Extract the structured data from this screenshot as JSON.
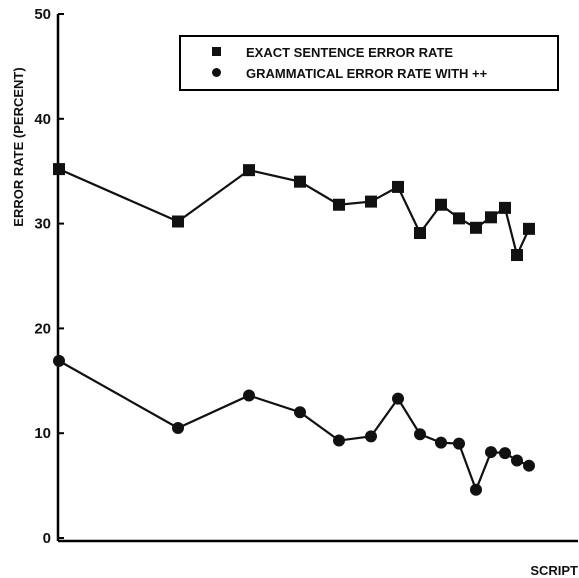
{
  "chart_data": {
    "type": "line",
    "title": "",
    "xlabel": "SCRIPT",
    "ylabel": "ERROR RATE (PERCENT)",
    "ylim": [
      0,
      50
    ],
    "yticks": [
      "0",
      "10",
      "20",
      "30",
      "40",
      "50"
    ],
    "grid": false,
    "legend_position": "top-right",
    "series": [
      {
        "name": "EXACT SENTENCE ERROR RATE",
        "marker": "square",
        "values": [
          35.2,
          30.2,
          35.1,
          34.0,
          31.8,
          32.1,
          33.5,
          29.1,
          31.8,
          30.5,
          29.6,
          30.6,
          31.5,
          27.0,
          29.5
        ]
      },
      {
        "name": "GRAMMATICAL ERROR RATE WITH ++",
        "marker": "circle",
        "values": [
          16.9,
          10.5,
          13.6,
          12.0,
          9.3,
          9.7,
          13.3,
          9.9,
          9.1,
          9.0,
          4.6,
          8.2,
          8.1,
          7.4,
          6.9
        ]
      }
    ]
  }
}
